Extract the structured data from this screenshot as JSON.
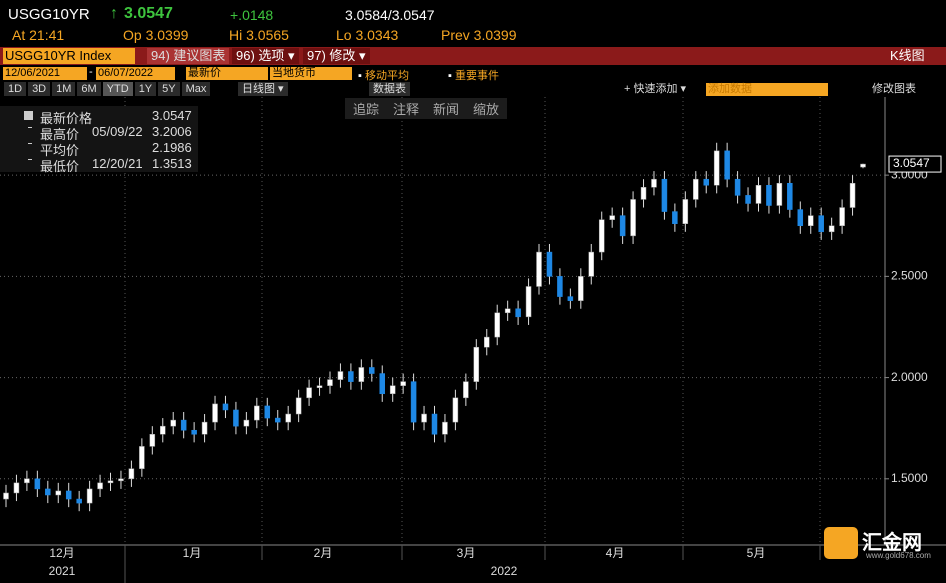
{
  "header": {
    "ticker": "USGG10YR",
    "arrow": "↑",
    "last": "3.0547",
    "change": "+.0148",
    "bid_ask": "3.0584/3.0547",
    "time": "At 21:41",
    "open": "Op 3.0399",
    "high": "Hi 3.0565",
    "low": "Lo 3.0343",
    "prev": "Prev 3.0399"
  },
  "menu": {
    "security": "USGG10YR Index",
    "suggest": "94) 建议图表",
    "options": "96) 选项 ▾",
    "edit": "97) 修改 ▾",
    "chart_kind": "K线图"
  },
  "toolbar": {
    "start": "12/06/2021",
    "dash": "-",
    "end": "06/07/2022",
    "field": "最新价",
    "currency": "当地货币",
    "moving_avg": "移动平均",
    "events": "重要事件",
    "periods": [
      "1D",
      "3D",
      "1M",
      "6M",
      "YTD",
      "1Y",
      "5Y",
      "Max"
    ],
    "frequency": "日线图 ▾",
    "table": "数据表",
    "quick_add": "+ 快速添加 ▾",
    "add_data": "添加数据",
    "edit_chart": "修改图表"
  },
  "tools": [
    "追踪",
    "注释",
    "新闻",
    "缩放"
  ],
  "legend": [
    {
      "label": "最新价格",
      "date": "",
      "value": "3.0547"
    },
    {
      "label": "最高价",
      "date": "05/09/22",
      "value": "3.2006"
    },
    {
      "label": "平均价",
      "date": "",
      "value": "2.1986"
    },
    {
      "label": "最低价",
      "date": "12/20/21",
      "value": "1.3513"
    }
  ],
  "watermark": {
    "name": "汇金网",
    "url": "www.gold678.com"
  },
  "chart_data": {
    "type": "candlestick",
    "up_color": "#ffffff",
    "down_color": "#1e88e5",
    "grid": true,
    "ylim": [
      1.173,
      3.386
    ],
    "yticks": [
      {
        "value": 1.5,
        "label": "1.5000"
      },
      {
        "value": 2,
        "label": "2.0000"
      },
      {
        "value": 2.5,
        "label": "2.5000"
      },
      {
        "value": 3,
        "label": "3.0000"
      }
    ],
    "last_label": "3.0547",
    "last_value": 3.0547,
    "months": [
      "12月",
      "1月",
      "2月",
      "3月",
      "4月",
      "5月"
    ],
    "years": [
      "2021",
      "2022"
    ],
    "open": [
      1.4,
      1.43,
      1.48,
      1.5,
      1.45,
      1.42,
      1.44,
      1.4,
      1.38,
      1.45,
      1.48,
      1.49,
      1.5,
      1.55,
      1.66,
      1.72,
      1.76,
      1.79,
      1.74,
      1.72,
      1.78,
      1.87,
      1.84,
      1.76,
      1.79,
      1.86,
      1.8,
      1.78,
      1.82,
      1.9,
      1.95,
      1.96,
      1.99,
      2.03,
      1.98,
      2.05,
      2.02,
      1.92,
      1.96,
      1.98,
      1.78,
      1.82,
      1.72,
      1.78,
      1.9,
      1.98,
      2.15,
      2.2,
      2.32,
      2.34,
      2.3,
      2.45,
      2.62,
      2.5,
      2.4,
      2.38,
      2.5,
      2.62,
      2.78,
      2.8,
      2.7,
      2.88,
      2.94,
      2.98,
      2.82,
      2.76,
      2.88,
      2.98,
      2.95,
      3.12,
      2.98,
      2.9,
      2.86,
      2.95,
      2.85,
      2.96,
      2.83,
      2.75,
      2.8,
      2.72,
      2.75,
      2.84,
      3.0399
    ],
    "high": [
      1.47,
      1.52,
      1.54,
      1.54,
      1.49,
      1.48,
      1.48,
      1.44,
      1.49,
      1.52,
      1.53,
      1.54,
      1.59,
      1.7,
      1.76,
      1.8,
      1.83,
      1.83,
      1.78,
      1.82,
      1.91,
      1.91,
      1.88,
      1.83,
      1.9,
      1.9,
      1.84,
      1.86,
      1.94,
      1.99,
      2.0,
      2.03,
      2.07,
      2.07,
      2.09,
      2.09,
      2.06,
      2.0,
      2.02,
      2.02,
      1.86,
      1.86,
      1.82,
      1.94,
      2.02,
      2.19,
      2.24,
      2.36,
      2.38,
      2.38,
      2.49,
      2.66,
      2.66,
      2.54,
      2.44,
      2.54,
      2.66,
      2.82,
      2.84,
      2.84,
      2.92,
      2.98,
      3.02,
      3.02,
      2.86,
      2.92,
      3.02,
      3.02,
      3.16,
      3.16,
      3.02,
      2.94,
      2.99,
      2.99,
      3.0,
      3.0,
      2.87,
      2.84,
      2.84,
      2.79,
      2.88,
      3.0,
      3.0565
    ],
    "low": [
      1.36,
      1.39,
      1.44,
      1.41,
      1.38,
      1.38,
      1.36,
      1.34,
      1.34,
      1.41,
      1.44,
      1.45,
      1.46,
      1.51,
      1.62,
      1.68,
      1.72,
      1.7,
      1.68,
      1.68,
      1.74,
      1.8,
      1.72,
      1.72,
      1.75,
      1.76,
      1.74,
      1.74,
      1.78,
      1.86,
      1.91,
      1.92,
      1.95,
      1.94,
      1.94,
      1.98,
      1.88,
      1.88,
      1.92,
      1.74,
      1.74,
      1.68,
      1.68,
      1.74,
      1.86,
      1.94,
      2.11,
      2.16,
      2.28,
      2.26,
      2.26,
      2.41,
      2.46,
      2.36,
      2.34,
      2.34,
      2.46,
      2.58,
      2.74,
      2.66,
      2.66,
      2.84,
      2.9,
      2.78,
      2.72,
      2.72,
      2.84,
      2.91,
      2.91,
      2.94,
      2.86,
      2.82,
      2.82,
      2.81,
      2.81,
      2.79,
      2.71,
      2.71,
      2.68,
      2.68,
      2.71,
      2.8,
      3.0343
    ],
    "close": [
      1.43,
      1.48,
      1.5,
      1.45,
      1.42,
      1.44,
      1.4,
      1.38,
      1.45,
      1.48,
      1.49,
      1.5,
      1.55,
      1.66,
      1.72,
      1.76,
      1.79,
      1.74,
      1.72,
      1.78,
      1.87,
      1.84,
      1.76,
      1.79,
      1.86,
      1.8,
      1.78,
      1.82,
      1.9,
      1.95,
      1.96,
      1.99,
      2.03,
      1.98,
      2.05,
      2.02,
      1.92,
      1.96,
      1.98,
      1.78,
      1.82,
      1.72,
      1.78,
      1.9,
      1.98,
      2.15,
      2.2,
      2.32,
      2.34,
      2.3,
      2.45,
      2.62,
      2.5,
      2.4,
      2.38,
      2.5,
      2.62,
      2.78,
      2.8,
      2.7,
      2.88,
      2.94,
      2.98,
      2.82,
      2.76,
      2.88,
      2.98,
      2.95,
      3.12,
      2.98,
      2.9,
      2.86,
      2.95,
      2.85,
      2.96,
      2.83,
      2.75,
      2.8,
      2.72,
      2.75,
      2.84,
      2.96,
      3.0547
    ]
  }
}
